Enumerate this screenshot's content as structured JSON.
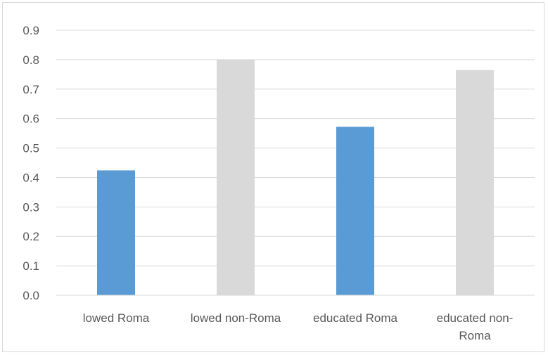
{
  "chart_data": {
    "type": "bar",
    "categories": [
      "lowed Roma",
      "lowed non-Roma",
      "educated Roma",
      "educated non-Roma"
    ],
    "category_lines": [
      [
        "lowed Roma"
      ],
      [
        "lowed non-Roma"
      ],
      [
        "educated Roma"
      ],
      [
        "educated non-",
        "Roma"
      ]
    ],
    "values": [
      0.424,
      0.8,
      0.572,
      0.765
    ],
    "bar_colors": [
      "#5b9bd5",
      "#d9d9d9",
      "#5b9bd5",
      "#d9d9d9"
    ],
    "ylim": [
      0,
      0.9
    ],
    "yticks": [
      "0.0",
      "0.1",
      "0.2",
      "0.3",
      "0.4",
      "0.5",
      "0.6",
      "0.7",
      "0.8",
      "0.9"
    ],
    "grid": true,
    "gridline_color": "#d9d9d9"
  }
}
